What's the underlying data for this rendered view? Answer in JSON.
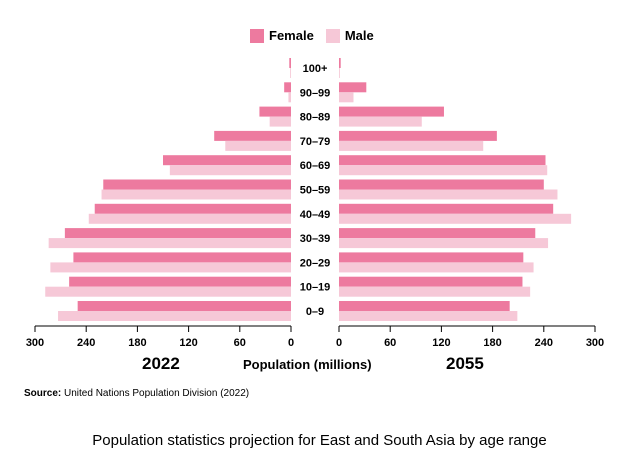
{
  "colors": {
    "female": "#ed7a9f",
    "male": "#f6c8d7",
    "axis": "#000000"
  },
  "legend": {
    "female_label": "Female",
    "male_label": "Male"
  },
  "labels": {
    "left_year": "2022",
    "right_year": "2055",
    "xlabel": "Population (millions)",
    "source_prefix": "Source:",
    "source_text": " United Nations Population Division (2022)",
    "caption": "Population statistics projection for East and South Asia by age range"
  },
  "chart_data": {
    "type": "bar",
    "orientation": "horizontal",
    "title": "Population statistics projection for East and South Asia by age range",
    "xlabel": "Population (millions)",
    "ylabel": "",
    "categories": [
      "0–9",
      "10–19",
      "20–29",
      "30–39",
      "40–49",
      "50–59",
      "60–69",
      "70–79",
      "80–89",
      "90–99",
      "100+"
    ],
    "xlim": [
      0,
      300
    ],
    "xticks": [
      0,
      60,
      120,
      180,
      240,
      300
    ],
    "panels": [
      {
        "name": "2022",
        "side": "left",
        "series": [
          {
            "name": "Female",
            "values": [
              250,
              260,
              255,
              265,
              230,
              220,
              150,
              90,
              37,
              8,
              2
            ]
          },
          {
            "name": "Male",
            "values": [
              273,
              288,
              282,
              284,
              237,
              222,
              142,
              77,
              25,
              3,
              1
            ]
          }
        ]
      },
      {
        "name": "2055",
        "side": "right",
        "series": [
          {
            "name": "Female",
            "values": [
              200,
              215,
              216,
              230,
              251,
              240,
              242,
              185,
              123,
              32,
              2
            ]
          },
          {
            "name": "Male",
            "values": [
              209,
              224,
              228,
              245,
              272,
              256,
              244,
              169,
              97,
              17,
              1
            ]
          }
        ]
      }
    ]
  }
}
